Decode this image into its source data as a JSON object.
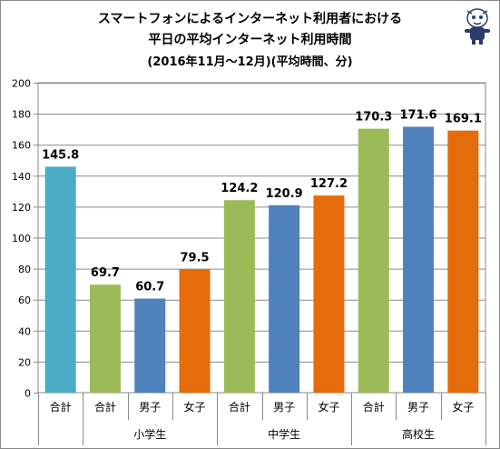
{
  "title": {
    "line1": "スマートフォンによるインターネット利用者における",
    "line2": "平日の平均インターネット利用時間",
    "line3": "(2016年11月～12月)(平均時間、分)"
  },
  "chart_data": {
    "type": "bar",
    "ylim": [
      0,
      200
    ],
    "yticks": [
      0,
      20,
      40,
      60,
      80,
      100,
      120,
      140,
      160,
      180,
      200
    ],
    "grid": true,
    "legend": "none",
    "categories": [
      "合計",
      "合計",
      "男子",
      "女子",
      "合計",
      "男子",
      "女子",
      "合計",
      "男子",
      "女子"
    ],
    "groups": [
      {
        "label": "",
        "from": 0,
        "to": 0
      },
      {
        "label": "小学生",
        "from": 1,
        "to": 3
      },
      {
        "label": "中学生",
        "from": 4,
        "to": 6
      },
      {
        "label": "高校生",
        "from": 7,
        "to": 9
      }
    ],
    "values": [
      145.8,
      69.7,
      60.7,
      79.5,
      124.2,
      120.9,
      127.2,
      170.3,
      171.6,
      169.1
    ],
    "data_labels": [
      "145.8",
      "69.7",
      "60.7",
      "79.5",
      "124.2",
      "120.9",
      "127.2",
      "170.3",
      "171.6",
      "169.1"
    ],
    "colors": {
      "合計_all": "#4bacc6",
      "合計": "#9bbb59",
      "男子": "#4f81bd",
      "女子": "#e46c0a"
    },
    "bar_colors": [
      "#4bacc6",
      "#9bbb59",
      "#4f81bd",
      "#e46c0a",
      "#9bbb59",
      "#4f81bd",
      "#e46c0a",
      "#9bbb59",
      "#4f81bd",
      "#e46c0a"
    ]
  }
}
